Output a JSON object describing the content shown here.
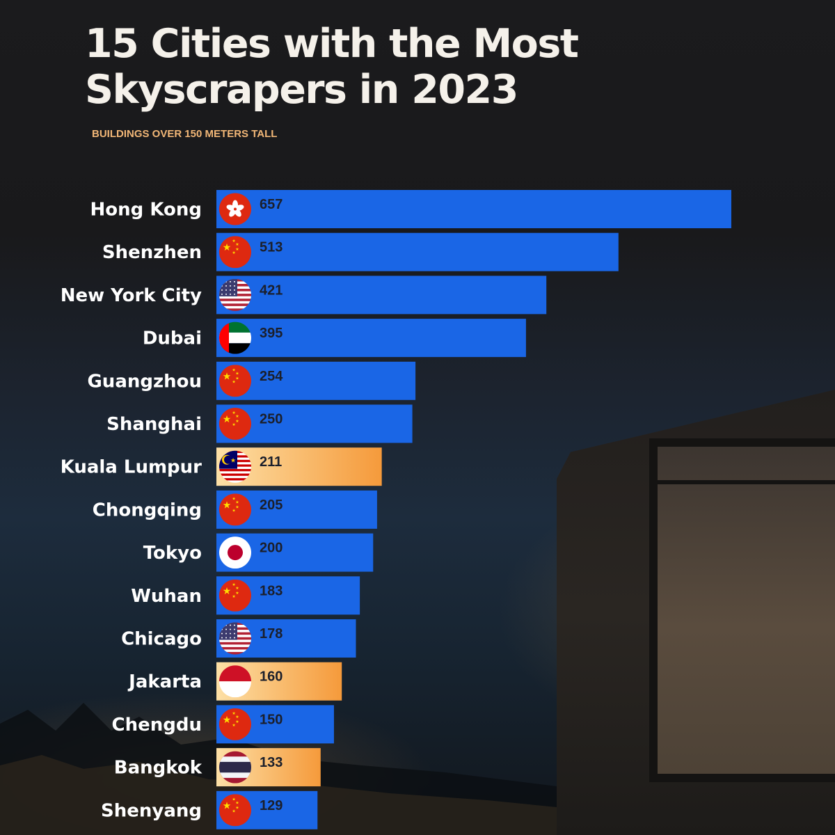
{
  "header": {
    "title": "15 Cities with the Most Skyscrapers in 2023",
    "subtitle": "BUILDINGS OVER 150 METERS TALL"
  },
  "colors": {
    "bar_blue": "#1a66e6",
    "bar_highlight_start": "#fde0a6",
    "bar_highlight_end": "#f59a3b",
    "subtitle": "#f2b777",
    "title": "#f5f1ea"
  },
  "chart_data": {
    "type": "bar",
    "orientation": "horizontal",
    "title": "15 Cities with the Most Skyscrapers in 2023",
    "subtitle": "BUILDINGS OVER 150 METERS TALL",
    "xlabel": "",
    "ylabel": "",
    "xlim": [
      0,
      657
    ],
    "grid": false,
    "legend": "none",
    "categories": [
      "Hong Kong",
      "Shenzhen",
      "New York City",
      "Dubai",
      "Guangzhou",
      "Shanghai",
      "Kuala Lumpur",
      "Chongqing",
      "Tokyo",
      "Wuhan",
      "Chicago",
      "Jakarta",
      "Chengdu",
      "Bangkok",
      "Shenyang"
    ],
    "values": [
      657,
      513,
      421,
      395,
      254,
      250,
      211,
      205,
      200,
      183,
      178,
      160,
      150,
      133,
      129
    ],
    "flags": [
      "hong-kong-flag-icon",
      "china-flag-icon",
      "usa-flag-icon",
      "uae-flag-icon",
      "china-flag-icon",
      "china-flag-icon",
      "malaysia-flag-icon",
      "china-flag-icon",
      "japan-flag-icon",
      "china-flag-icon",
      "usa-flag-icon",
      "indonesia-flag-icon",
      "china-flag-icon",
      "thailand-flag-icon",
      "china-flag-icon"
    ],
    "highlighted": [
      "Kuala Lumpur",
      "Jakarta",
      "Bangkok"
    ]
  }
}
